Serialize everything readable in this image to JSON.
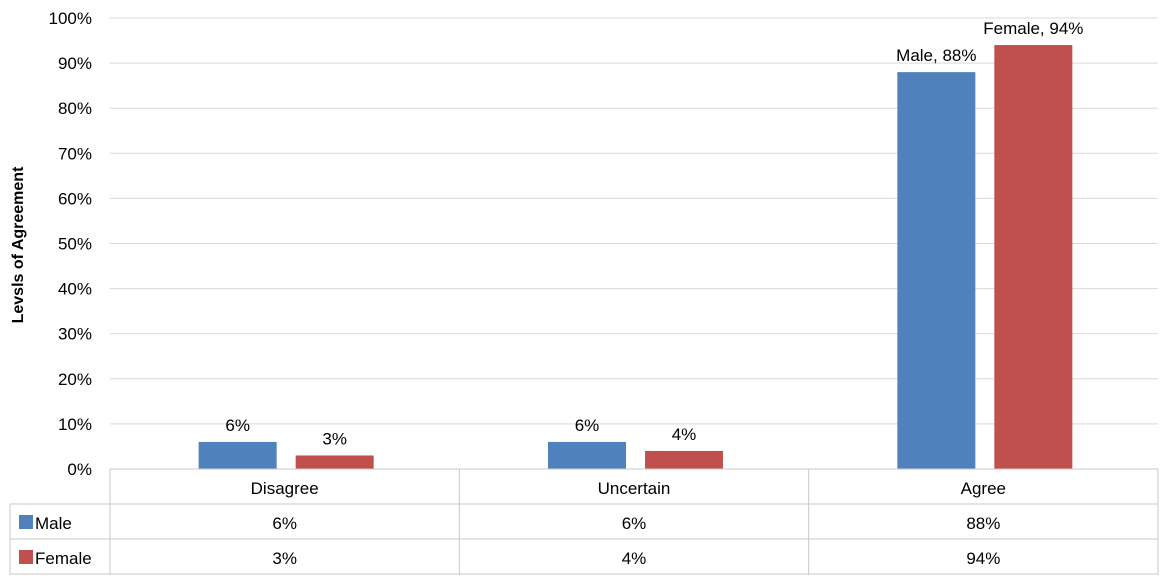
{
  "chart_data": {
    "type": "bar",
    "ylabel": "Levsls of Agreement",
    "ylim": [
      0,
      100
    ],
    "y_ticks": [
      "0%",
      "10%",
      "20%",
      "30%",
      "40%",
      "50%",
      "60%",
      "70%",
      "80%",
      "90%",
      "100%"
    ],
    "grid": true,
    "legend_placement": "data-table",
    "categories": [
      "Disagree",
      "Uncertain",
      "Agree"
    ],
    "series": [
      {
        "name": "Male",
        "color": "#4f81bd",
        "values": [
          6,
          6,
          88
        ],
        "data_labels": [
          "6%",
          "6%",
          "Male, 88%"
        ],
        "table_values": [
          "6%",
          "6%",
          "88%"
        ]
      },
      {
        "name": "Female",
        "color": "#c0504d",
        "values": [
          3,
          4,
          94
        ],
        "data_labels": [
          "3%",
          "4%",
          "Female, 94%"
        ],
        "table_values": [
          "3%",
          "4%",
          "94%"
        ]
      }
    ]
  }
}
